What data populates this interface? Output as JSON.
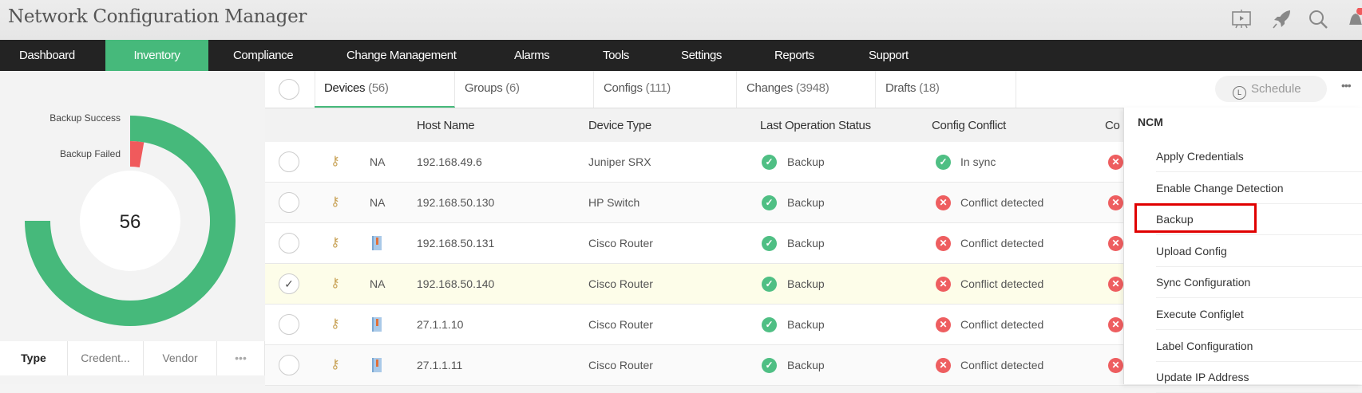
{
  "app": {
    "title": "Network Configuration Manager"
  },
  "header_icons": [
    "presentation-icon",
    "rocket-icon",
    "search-icon",
    "bell-icon"
  ],
  "nav": {
    "items": [
      "Dashboard",
      "Inventory",
      "Compliance",
      "Change Management",
      "Alarms",
      "Tools",
      "Settings",
      "Reports",
      "Support"
    ],
    "active": "Inventory"
  },
  "colors": {
    "accent": "#46b97b",
    "nav_bg": "#232323",
    "success": "#46b97b",
    "failed": "#f05a5c",
    "highlight": "#e00000",
    "selected_row": "#fdfde9"
  },
  "chart_data": {
    "type": "radial-bar",
    "center_label": "56",
    "series": [
      {
        "name": "Backup Success",
        "value": 54,
        "color": "#46b97b"
      },
      {
        "name": "Backup Failed",
        "value": 2,
        "color": "#f05a5c"
      }
    ]
  },
  "left_tabs": [
    "Type",
    "Credent...",
    "Vendor",
    "•••"
  ],
  "tabs": [
    {
      "label": "Devices",
      "count": "(56)"
    },
    {
      "label": "Groups",
      "count": "(6)"
    },
    {
      "label": "Configs",
      "count": "(111)"
    },
    {
      "label": "Changes",
      "count": "(3948)"
    },
    {
      "label": "Drafts",
      "count": "(18)"
    }
  ],
  "schedule_label": "Schedule",
  "more_label": "•••",
  "columns": [
    "Host Name",
    "Device Type",
    "Last Operation Status",
    "Config Conflict",
    "Co"
  ],
  "rows": [
    {
      "type_icon": "NA",
      "host": "192.168.49.6",
      "device_type": "Juniper SRX",
      "status": "Backup",
      "conflict": "In sync",
      "conflict_ok": true,
      "selected": false
    },
    {
      "type_icon": "NA",
      "host": "192.168.50.130",
      "device_type": "HP Switch",
      "status": "Backup",
      "conflict": "Conflict detected",
      "conflict_ok": false,
      "selected": false
    },
    {
      "type_icon": "device",
      "host": "192.168.50.131",
      "device_type": "Cisco Router",
      "status": "Backup",
      "conflict": "Conflict detected",
      "conflict_ok": false,
      "selected": false
    },
    {
      "type_icon": "NA",
      "host": "192.168.50.140",
      "device_type": "Cisco Router",
      "status": "Backup",
      "conflict": "Conflict detected",
      "conflict_ok": false,
      "selected": true
    },
    {
      "type_icon": "device",
      "host": "27.1.1.10",
      "device_type": "Cisco Router",
      "status": "Backup",
      "conflict": "Conflict detected",
      "conflict_ok": false,
      "selected": false
    },
    {
      "type_icon": "device",
      "host": "27.1.1.11",
      "device_type": "Cisco Router",
      "status": "Backup",
      "conflict": "Conflict detected",
      "conflict_ok": false,
      "selected": false
    }
  ],
  "menu": {
    "header": "NCM",
    "items": [
      "Apply Credentials",
      "Enable Change Detection",
      "Backup",
      "Upload Config",
      "Sync Configuration",
      "Execute Configlet",
      "Label Configuration",
      "Update IP Address"
    ],
    "highlighted": "Backup"
  }
}
